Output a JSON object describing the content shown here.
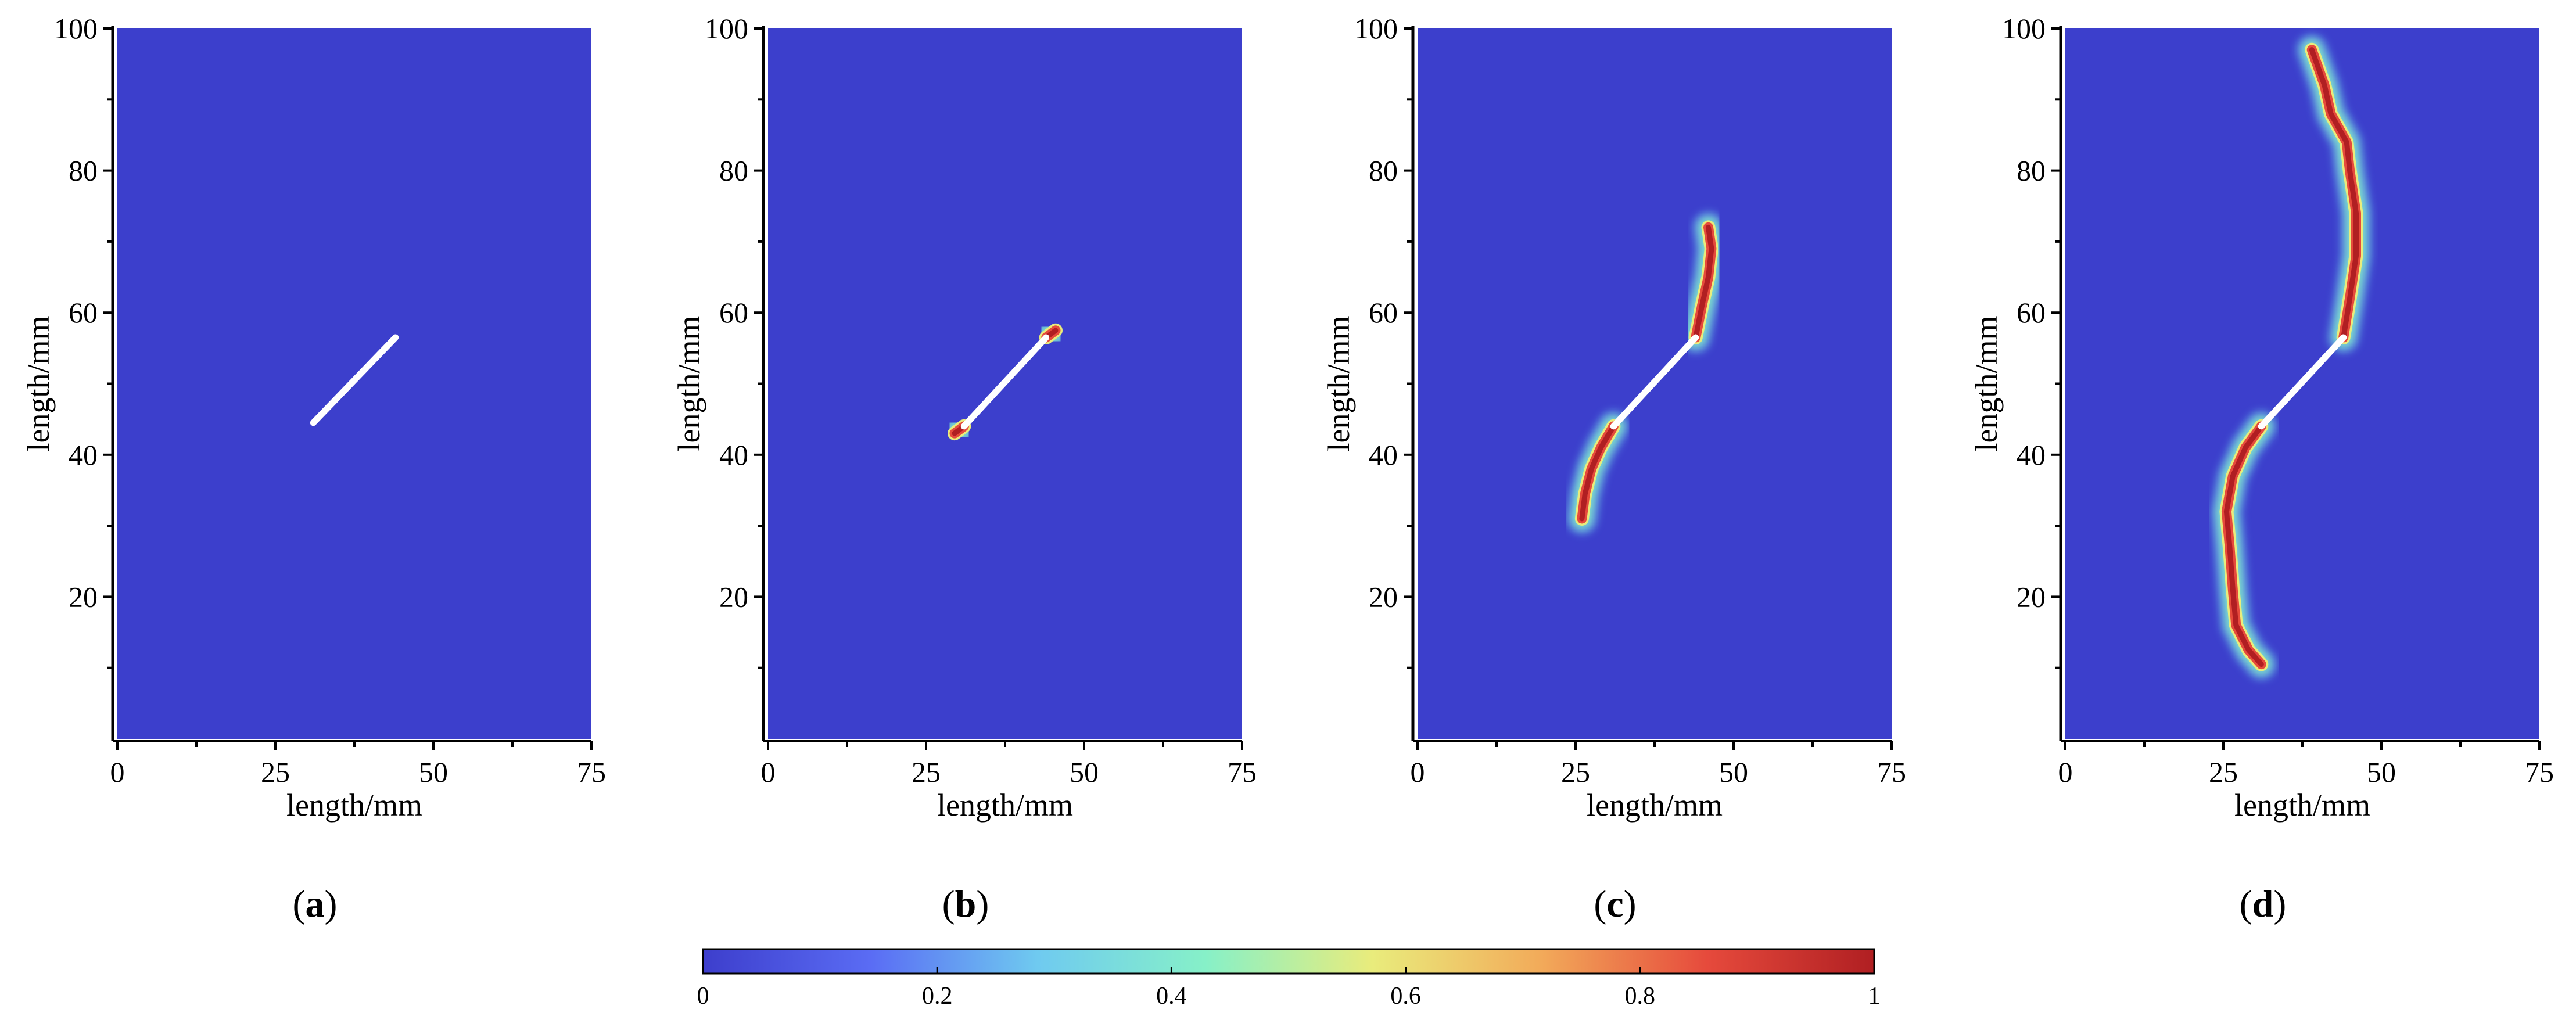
{
  "figure": {
    "colormap_name": "jet",
    "background_value_color": "#3c3fcc",
    "colormap_stops": [
      "#3d3ecc",
      "#5a6cf4",
      "#6fcaf0",
      "#86f0c8",
      "#e9ec7c",
      "#f2ab5a",
      "#e64a3c",
      "#b01f22"
    ],
    "notch_color": "#ffffff",
    "axis_color": "#000000"
  },
  "chart_data": [
    {
      "type": "heatmap",
      "panel_label": "a",
      "title": "",
      "xlabel": "length/mm",
      "ylabel": "length/mm",
      "xlim": [
        0,
        75
      ],
      "ylim": [
        0,
        100
      ],
      "x_ticks": [
        "0",
        "25",
        "50",
        "75"
      ],
      "y_ticks": [
        "20",
        "40",
        "60",
        "80",
        "100"
      ],
      "value_range": [
        0,
        1
      ],
      "preset_crack": {
        "start": [
          31,
          44.5
        ],
        "end": [
          44,
          56.5
        ]
      },
      "damage_paths": []
    },
    {
      "type": "heatmap",
      "panel_label": "b",
      "title": "",
      "xlabel": "length/mm",
      "ylabel": "length/mm",
      "xlim": [
        0,
        75
      ],
      "ylim": [
        0,
        100
      ],
      "x_ticks": [
        "0",
        "25",
        "50",
        "75"
      ],
      "y_ticks": [
        "20",
        "40",
        "60",
        "80",
        "100"
      ],
      "value_range": [
        0,
        1
      ],
      "preset_crack": {
        "start": [
          31,
          44
        ],
        "end": [
          44,
          56.5
        ]
      },
      "damage_paths": [
        {
          "points": [
            [
              44,
              56.5
            ],
            [
              45.5,
              57.5
            ]
          ],
          "value": 1
        },
        {
          "points": [
            [
              31,
              44
            ],
            [
              29.5,
              43
            ]
          ],
          "value": 1
        }
      ]
    },
    {
      "type": "heatmap",
      "panel_label": "c",
      "title": "",
      "xlabel": "length/mm",
      "ylabel": "length/mm",
      "xlim": [
        0,
        75
      ],
      "ylim": [
        0,
        100
      ],
      "x_ticks": [
        "0",
        "25",
        "50",
        "75"
      ],
      "y_ticks": [
        "20",
        "40",
        "60",
        "80",
        "100"
      ],
      "value_range": [
        0,
        1
      ],
      "preset_crack": {
        "start": [
          31,
          44
        ],
        "end": [
          44,
          56.5
        ]
      },
      "damage_paths": [
        {
          "points": [
            [
              44,
              56.5
            ],
            [
              45,
              61
            ],
            [
              46,
              65
            ],
            [
              46.5,
              69
            ],
            [
              46,
              72
            ]
          ],
          "value": 1
        },
        {
          "points": [
            [
              31,
              44
            ],
            [
              29,
              41
            ],
            [
              27.5,
              38
            ],
            [
              26.5,
              34.5
            ],
            [
              26,
              31
            ]
          ],
          "value": 1
        }
      ]
    },
    {
      "type": "heatmap",
      "panel_label": "d",
      "title": "",
      "xlabel": "length/mm",
      "ylabel": "length/mm",
      "xlim": [
        0,
        75
      ],
      "ylim": [
        0,
        100
      ],
      "x_ticks": [
        "0",
        "25",
        "50",
        "75"
      ],
      "y_ticks": [
        "20",
        "40",
        "60",
        "80",
        "100"
      ],
      "value_range": [
        0,
        1
      ],
      "preset_crack": {
        "start": [
          31,
          44
        ],
        "end": [
          44,
          56.5
        ]
      },
      "damage_paths": [
        {
          "points": [
            [
              44,
              56.5
            ],
            [
              45,
              62
            ],
            [
              46,
              68
            ],
            [
              46,
              74
            ],
            [
              45,
              80
            ],
            [
              44.5,
              84
            ],
            [
              42,
              88
            ],
            [
              41,
              92
            ],
            [
              39,
              97
            ]
          ],
          "value": 1
        },
        {
          "points": [
            [
              31,
              44
            ],
            [
              28.5,
              41
            ],
            [
              26.5,
              37
            ],
            [
              25.5,
              32
            ],
            [
              26,
              27
            ],
            [
              26.5,
              21
            ],
            [
              27,
              16
            ],
            [
              29,
              12.5
            ],
            [
              31,
              10.5
            ]
          ],
          "value": 1
        }
      ]
    }
  ],
  "colorbar": {
    "min": 0,
    "max": 1,
    "ticks": [
      "0",
      "0.2",
      "0.4",
      "0.6",
      "0.8",
      "1"
    ]
  }
}
